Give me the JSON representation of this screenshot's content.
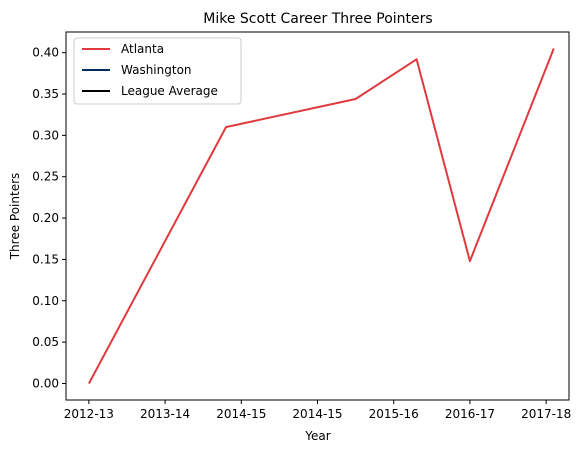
{
  "chart_data": {
    "type": "line",
    "title": "Mike Scott  Career Three Pointers",
    "xlabel": "Year",
    "ylabel": "Three Pointers",
    "x_ticks": [
      {
        "pos": 0,
        "label": "2012-13"
      },
      {
        "pos": 1,
        "label": "2013-14"
      },
      {
        "pos": 2,
        "label": "2014-15"
      },
      {
        "pos": 3,
        "label": "2014-15"
      },
      {
        "pos": 4,
        "label": "2015-16"
      },
      {
        "pos": 5,
        "label": "2016-17"
      },
      {
        "pos": 6,
        "label": "2017-18"
      }
    ],
    "xlim": [
      -0.3,
      6.3
    ],
    "ylim": [
      -0.02,
      0.425
    ],
    "y_ticks": [
      "0.00",
      "0.05",
      "0.10",
      "0.15",
      "0.20",
      "0.25",
      "0.30",
      "0.35",
      "0.40"
    ],
    "grid": false,
    "legend_position": "top-left",
    "series": [
      {
        "name": "Atlanta",
        "color": "#E03A3E",
        "x": [
          0,
          1.8,
          3.5,
          4.3,
          5,
          6.1
        ],
        "y": [
          0.0,
          0.31,
          0.344,
          0.392,
          0.148,
          0.405
        ]
      },
      {
        "name": "Washington",
        "color": "#002B5C",
        "x": [],
        "y": []
      },
      {
        "name": "League Average",
        "color": "#000000",
        "x": [],
        "y": []
      }
    ]
  }
}
